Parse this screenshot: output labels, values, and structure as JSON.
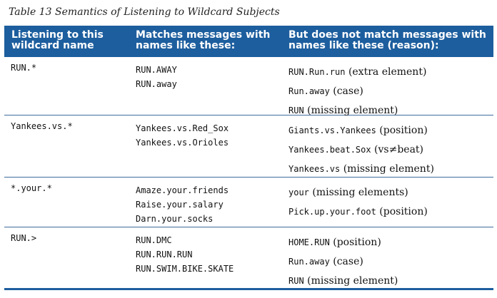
{
  "caption": "Table 13  Semantics of Listening to Wildcard Subjects",
  "headers": {
    "col1": [
      "Listening to this",
      "wildcard name"
    ],
    "col2": [
      "Matches messages with",
      "names like these:"
    ],
    "col3": [
      "But does not match messages with",
      "names like these (reason):"
    ]
  },
  "rows": [
    {
      "pattern": "RUN.*",
      "matches": [
        "RUN.AWAY",
        "RUN.away"
      ],
      "non_matches": [
        {
          "name": "RUN.Run.run",
          "reason": "(extra element)"
        },
        {
          "name": "Run.away",
          "reason": "(case)"
        },
        {
          "name": "RUN",
          "reason": "(missing element)"
        }
      ]
    },
    {
      "pattern": "Yankees.vs.*",
      "matches": [
        "Yankees.vs.Red_Sox",
        "Yankees.vs.Orioles"
      ],
      "non_matches": [
        {
          "name": "Giants.vs.Yankees",
          "reason": "(position)"
        },
        {
          "name": "Yankees.beat.Sox",
          "reason": "(vs≠beat)"
        },
        {
          "name": "Yankees.vs",
          "reason": "(missing element)"
        }
      ]
    },
    {
      "pattern": "*.your.*",
      "matches": [
        "Amaze.your.friends",
        "Raise.your.salary",
        "Darn.your.socks"
      ],
      "non_matches": [
        {
          "name": "your",
          "reason": "(missing elements)"
        },
        {
          "name": "Pick.up.your.foot",
          "reason": "(position)"
        }
      ]
    },
    {
      "pattern": "RUN.>",
      "matches": [
        "RUN.DMC",
        "RUN.RUN.RUN",
        "RUN.SWIM.BIKE.SKATE"
      ],
      "non_matches": [
        {
          "name": "HOME.RUN",
          "reason": "(position)"
        },
        {
          "name": "Run.away",
          "reason": "(case)"
        },
        {
          "name": "RUN",
          "reason": "(missing element)"
        }
      ]
    }
  ]
}
